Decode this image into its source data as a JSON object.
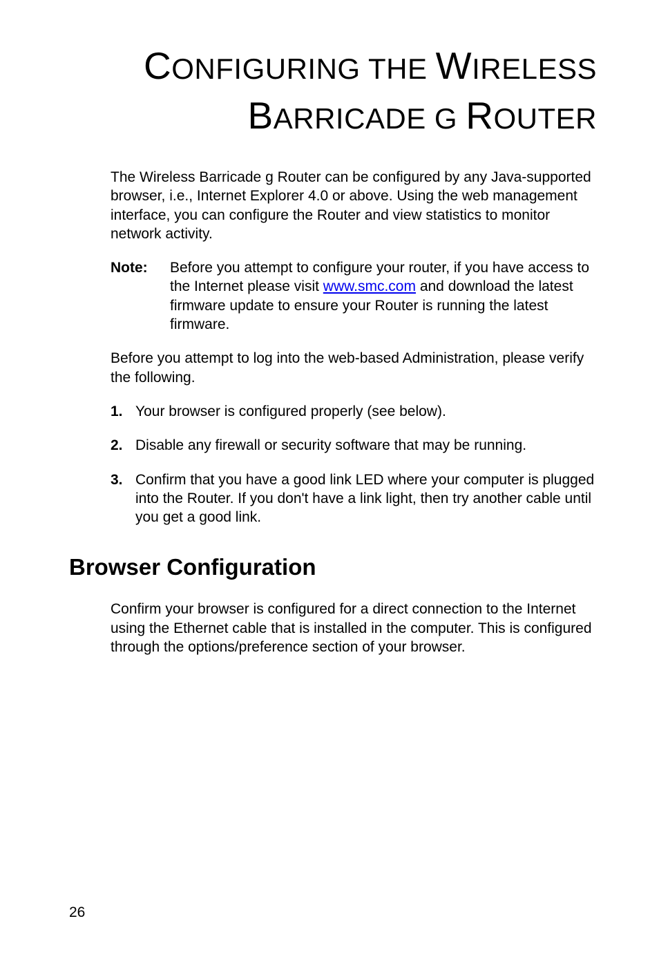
{
  "chapter_title_html": "<span class=\"caps\">C</span>ONFIGURING THE <span class=\"caps\">W</span>IRELESS <span class=\"caps\">B</span>ARRICADE G <span class=\"caps\">R</span>OUTER",
  "intro": "The Wireless Barricade g Router can be configured by any Java-supported browser, i.e., Internet Explorer 4.0 or above. Using the web management interface, you can configure the Router and view statistics to monitor network activity.",
  "note_label": "Note:",
  "note_pre": "Before you attempt to configure your router, if you have access to the Internet please visit ",
  "note_link": "www.smc.com",
  "note_post": " and download the latest firmware update to ensure your Router is running the latest firmware.",
  "before_log": "Before you attempt to log into the web-based Administration, please verify the following.",
  "items": [
    {
      "num": "1.",
      "text": "Your browser is configured properly (see below)."
    },
    {
      "num": "2.",
      "text": "Disable any firewall or security software that may be running."
    },
    {
      "num": "3.",
      "text": "Confirm that you have a good link LED where your computer is plugged into the Router. If you don't have a link light, then try another cable until you get a good link."
    }
  ],
  "section_heading": "Browser Configuration",
  "section_para": "Confirm your browser is configured for a direct connection to the Internet using the Ethernet cable that is installed in the computer. This is configured through the options/preference section of your browser.",
  "page_number": "26"
}
